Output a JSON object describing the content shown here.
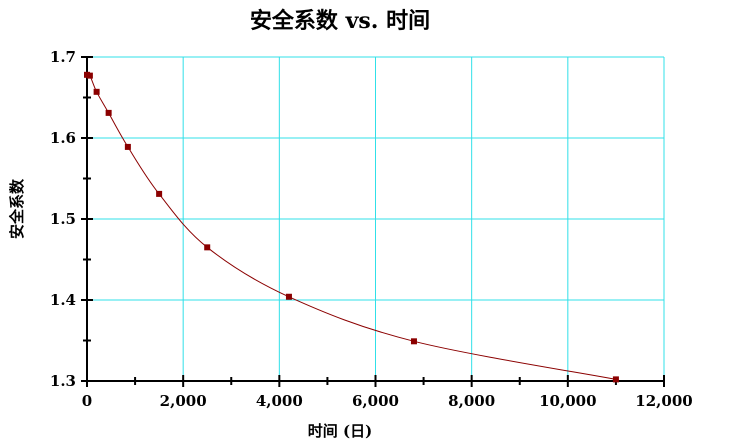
{
  "chart_data": {
    "type": "line",
    "title": "安全系数 vs. 时间",
    "xlabel": "时间 (日)",
    "ylabel": "安全系数",
    "xlim": [
      0,
      12000
    ],
    "ylim": [
      1.3,
      1.7
    ],
    "x_ticks": [
      0,
      2000,
      4000,
      6000,
      8000,
      10000,
      12000
    ],
    "x_tick_labels": [
      "0",
      "2,000",
      "4,000",
      "6,000",
      "8,000",
      "10,000",
      "12,000"
    ],
    "y_ticks": [
      1.3,
      1.4,
      1.5,
      1.6,
      1.7
    ],
    "y_tick_labels": [
      "1.3",
      "1.4",
      "1.5",
      "1.6",
      "1.7"
    ],
    "grid": true,
    "legend": "none",
    "series": [
      {
        "x": [
          0,
          60,
          200,
          450,
          850,
          1500,
          2500,
          4200,
          6800,
          11000
        ],
        "y": [
          1.678,
          1.677,
          1.657,
          1.631,
          1.589,
          1.531,
          1.465,
          1.404,
          1.349,
          1.302
        ],
        "color": "#8b0000"
      }
    ]
  }
}
